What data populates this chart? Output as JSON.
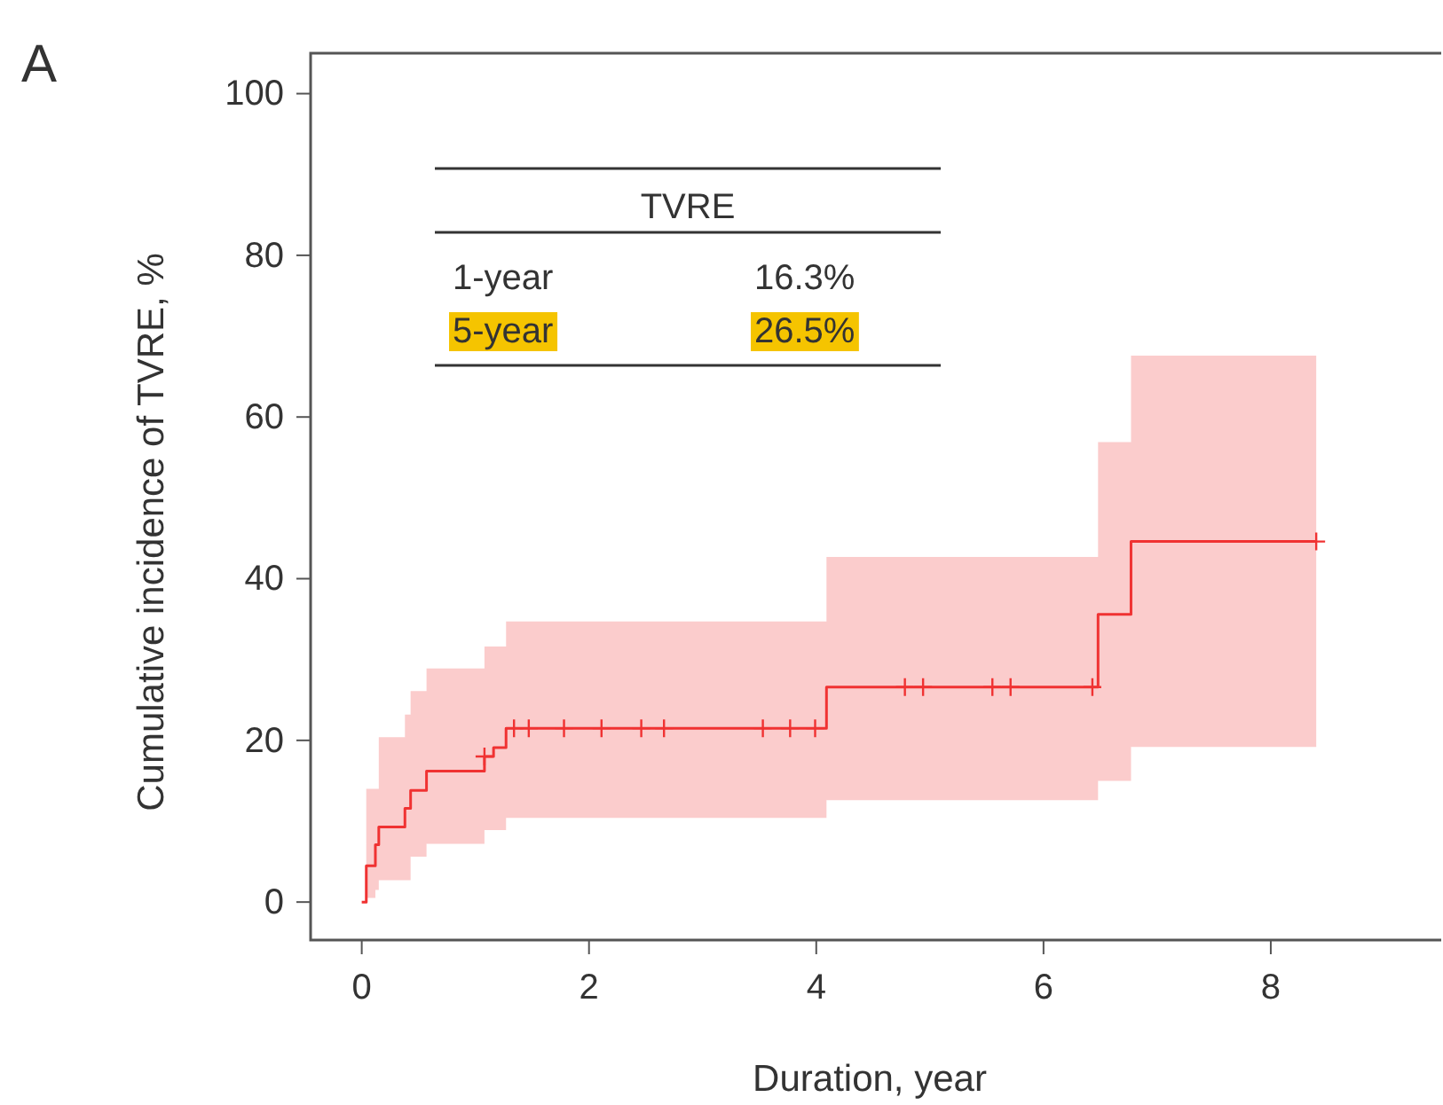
{
  "chart_data": {
    "type": "step",
    "title": "A",
    "xlabel": "Duration, year",
    "ylabel": "Cumulative incidence of TVRE, %",
    "xlim": [
      -0.45,
      9.5
    ],
    "ylim": [
      -4.7,
      105
    ],
    "xticks": [
      0,
      2,
      4,
      6,
      8
    ],
    "yticks": [
      0,
      20,
      40,
      60,
      80,
      100
    ],
    "grid": false,
    "series": [
      {
        "color": "#f03232",
        "line_style": "solid",
        "x": [
          0,
          0.04,
          0.12,
          0.15,
          0.38,
          0.43,
          0.57,
          1.08,
          1.16,
          1.27,
          4.09,
          6.48,
          6.77,
          8.4
        ],
        "values": [
          0,
          4.5,
          7.1,
          9.3,
          11.6,
          13.8,
          16.2,
          18.0,
          19.1,
          21.5,
          26.6,
          35.6,
          44.6,
          44.6
        ],
        "lower": [
          0,
          0.5,
          1.5,
          2.7,
          2.7,
          5.6,
          7.2,
          8.9,
          8.9,
          10.4,
          12.6,
          15.0,
          19.2,
          19.2
        ],
        "upper": [
          0,
          14,
          14,
          20.4,
          23.2,
          26.1,
          28.9,
          31.6,
          31.6,
          34.7,
          42.7,
          56.9,
          67.6,
          67.6
        ]
      },
      {
        "type": "scatter",
        "marker": "cross",
        "color": "#f03232",
        "x": [
          1.08,
          1.34,
          1.47,
          1.78,
          2.11,
          2.46,
          2.66,
          3.53,
          3.77,
          3.99,
          4.78,
          4.94,
          5.55,
          5.71,
          6.43,
          8.4
        ],
        "values": [
          18.0,
          21.5,
          21.5,
          21.5,
          21.5,
          21.5,
          21.5,
          21.5,
          21.5,
          21.5,
          26.6,
          26.6,
          26.6,
          26.6,
          26.6,
          44.6
        ]
      }
    ],
    "annotations": [
      "TVRE",
      "1-year",
      "16.3%",
      "5-year",
      "26.5%"
    ]
  }
}
